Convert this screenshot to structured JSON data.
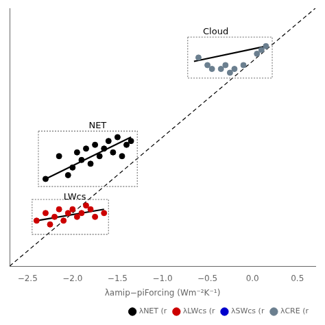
{
  "chart_data": {
    "type": "scatter",
    "xlabel": "λamip−piForcing (Wm⁻²K⁻¹)",
    "xlim": [
      -2.7,
      0.7
    ],
    "ylim": [
      -2.7,
      0.7
    ],
    "xticks": [
      {
        "value": -2.5,
        "label": "−2.5"
      },
      {
        "value": -2.0,
        "label": "−2.0"
      },
      {
        "value": -1.5,
        "label": "−1.5"
      },
      {
        "value": -1.0,
        "label": "−1.0"
      },
      {
        "value": -0.5,
        "label": "−0.5"
      },
      {
        "value": 0.0,
        "label": "0.0"
      },
      {
        "value": 0.5,
        "label": "0.5"
      }
    ],
    "yticks": [],
    "tick_labels": "x",
    "grid": false,
    "legend": "lower right",
    "series": [
      {
        "type": "line",
        "line_style": "dashed",
        "color": "#000000",
        "x": [
          -2.7,
          0.7
        ],
        "values": [
          -2.7,
          0.7
        ]
      },
      {
        "name": "λNET (r",
        "type": "scatter",
        "color": "#000000",
        "x": [
          -2.3,
          -2.15,
          -2.05,
          -2.0,
          -1.95,
          -1.9,
          -1.85,
          -1.8,
          -1.75,
          -1.7,
          -1.65,
          -1.6,
          -1.55,
          -1.5,
          -1.45,
          -1.4,
          -1.35
        ],
        "values": [
          -1.55,
          -1.25,
          -1.5,
          -1.4,
          -1.2,
          -1.3,
          -1.15,
          -1.35,
          -1.1,
          -1.25,
          -1.15,
          -1.05,
          -1.2,
          -1.0,
          -1.25,
          -1.1,
          -1.05
        ]
      },
      {
        "type": "line",
        "line_style": "solid",
        "color": "#000000",
        "x": [
          -2.3,
          -1.35
        ],
        "values": [
          -1.55,
          -1.0
        ]
      },
      {
        "name": "λLWcs (r",
        "type": "scatter",
        "color": "#cc0000",
        "x": [
          -2.4,
          -2.3,
          -2.25,
          -2.2,
          -2.15,
          -2.1,
          -2.05,
          -2.0,
          -1.95,
          -1.9,
          -1.85,
          -1.8,
          -1.75,
          -1.65
        ],
        "values": [
          -2.1,
          -2.0,
          -2.15,
          -2.05,
          -1.95,
          -2.1,
          -2.0,
          -1.95,
          -2.05,
          -2.0,
          -1.9,
          -1.95,
          -2.05,
          -2.0
        ]
      },
      {
        "type": "line",
        "line_style": "solid",
        "color": "#000000",
        "x": [
          -2.4,
          -1.65
        ],
        "values": [
          -2.1,
          -1.95
        ]
      },
      {
        "name": "λSWcs (r",
        "type": "scatter",
        "color": "#0000cc",
        "x": [],
        "values": []
      },
      {
        "name": "λCRE (r",
        "type": "scatter",
        "color": "#6b7f8f",
        "x": [
          -0.6,
          -0.5,
          -0.45,
          -0.35,
          -0.3,
          -0.25,
          -0.2,
          -0.1,
          0.05,
          0.1,
          0.15
        ],
        "values": [
          0.05,
          -0.05,
          -0.1,
          -0.1,
          -0.05,
          -0.15,
          -0.1,
          -0.05,
          0.1,
          0.15,
          0.2
        ]
      },
      {
        "type": "line",
        "line_style": "solid",
        "color": "#000000",
        "x": [
          -0.65,
          0.15
        ],
        "values": [
          0.0,
          0.2
        ]
      }
    ],
    "boxes": [
      {
        "x0": -2.38,
        "x1": -1.28,
        "y0": -1.65,
        "y1": -0.92
      },
      {
        "x0": -2.45,
        "x1": -1.6,
        "y0": -2.28,
        "y1": -1.82
      },
      {
        "x0": -0.72,
        "x1": 0.22,
        "y0": -0.22,
        "y1": 0.32
      }
    ],
    "annotations": [
      {
        "text": "NET",
        "x": -1.82,
        "y": -0.88
      },
      {
        "text": "LWcs",
        "x": -2.1,
        "y": -1.82
      },
      {
        "text": "Cloud",
        "x": -0.55,
        "y": 0.36
      }
    ]
  }
}
